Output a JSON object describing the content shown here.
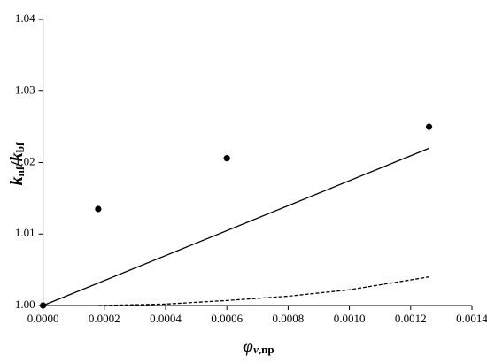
{
  "chart_data": {
    "type": "scatter",
    "xlabel_parts": [
      "φ",
      "v",
      ",np"
    ],
    "ylabel_parts": [
      "k",
      "nf",
      "/",
      "k",
      "bf"
    ],
    "xlim": [
      0,
      0.0014
    ],
    "xticks": [
      {
        "value": 0,
        "label": "0.0000"
      },
      {
        "value": 0.0002,
        "label": "0.0002"
      },
      {
        "value": 0.0004,
        "label": "0.0004"
      },
      {
        "value": 0.0006,
        "label": "0.0006"
      },
      {
        "value": 0.0008,
        "label": "0.0008"
      },
      {
        "value": 0.001,
        "label": "0.0010"
      },
      {
        "value": 0.0012,
        "label": "0.0012"
      },
      {
        "value": 0.0014,
        "label": "0.0014"
      }
    ],
    "ylim": [
      1.0,
      1.04
    ],
    "yticks": [
      {
        "value": 1.0,
        "label": "1.00"
      },
      {
        "value": 1.01,
        "label": "1.01"
      },
      {
        "value": 1.02,
        "label": "1.02"
      },
      {
        "value": 1.03,
        "label": "1.03"
      },
      {
        "value": 1.04,
        "label": "1.04"
      }
    ],
    "series": [
      {
        "mode": "markers",
        "color": "#000000",
        "x": [
          0,
          0.00018,
          0.0006,
          0.00126
        ],
        "values": [
          1.0,
          1.0135,
          1.0206,
          1.025
        ]
      },
      {
        "mode": "solid",
        "color": "#000000",
        "x": [
          0,
          0.00126
        ],
        "values": [
          1.0,
          1.022
        ]
      },
      {
        "mode": "dashed",
        "color": "#000000",
        "x": [
          0.00018,
          0.0004,
          0.0006,
          0.0008,
          0.001,
          0.00126
        ],
        "values": [
          1.0,
          1.0002,
          1.0007,
          1.0013,
          1.0022,
          1.004
        ]
      }
    ]
  }
}
